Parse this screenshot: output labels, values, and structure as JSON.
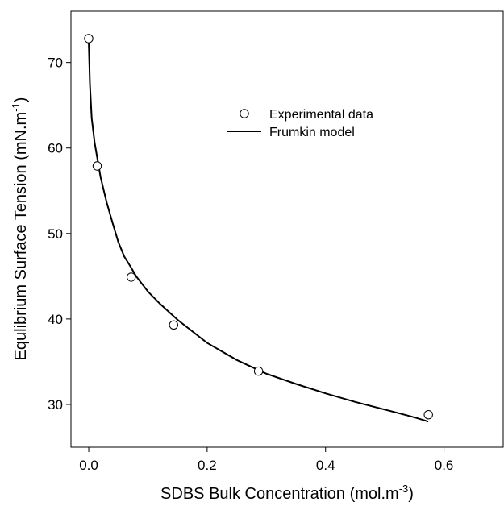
{
  "chart_data": {
    "type": "scatter",
    "xlabel": "SDBS Bulk Concentration (mol.m",
    "xlabel_sup": "-3",
    "xlabel_end": ")",
    "ylabel": "Equlibrium Surface Tension (mN.m",
    "ylabel_sup": "-1",
    "ylabel_end": ")",
    "xlim": [
      -0.03,
      0.7
    ],
    "ylim": [
      25,
      76
    ],
    "x_ticks": [
      0.0,
      0.2,
      0.4,
      0.6
    ],
    "x_tick_labels": [
      "0.0",
      "0.2",
      "0.4",
      "0.6"
    ],
    "y_ticks": [
      30,
      40,
      50,
      60,
      70
    ],
    "y_tick_labels": [
      "30",
      "40",
      "50",
      "60",
      "70"
    ],
    "grid": false,
    "legend_position": "upper-center-right",
    "series": [
      {
        "name": "Experimental data",
        "type": "scatter",
        "marker": "open-circle",
        "x": [
          0.0,
          0.0143,
          0.0717,
          0.1434,
          0.2868,
          0.5736
        ],
        "y": [
          72.8,
          57.9,
          44.9,
          39.3,
          33.9,
          28.8
        ]
      },
      {
        "name": "Frumkin model",
        "type": "line",
        "x": [
          0.0,
          0.002,
          0.005,
          0.01,
          0.02,
          0.03,
          0.04,
          0.05,
          0.06,
          0.07,
          0.08,
          0.1,
          0.12,
          0.15,
          0.2,
          0.25,
          0.3,
          0.35,
          0.4,
          0.45,
          0.5,
          0.55,
          0.5736
        ],
        "y": [
          72.6,
          67.5,
          63.5,
          60.6,
          56.6,
          53.7,
          51.3,
          49.0,
          47.3,
          46.2,
          45.0,
          43.2,
          41.8,
          39.9,
          37.2,
          35.2,
          33.6,
          32.4,
          31.3,
          30.3,
          29.4,
          28.5,
          28.0
        ]
      }
    ]
  }
}
